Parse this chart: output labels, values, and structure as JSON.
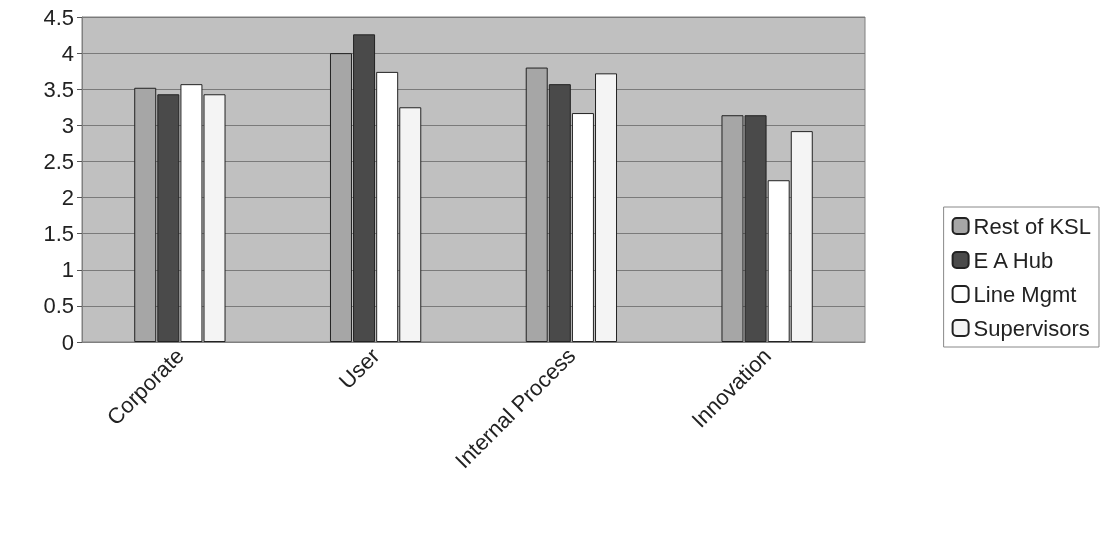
{
  "chart_data": {
    "type": "bar",
    "categories": [
      "Corporate",
      "User",
      "Internal Process",
      "Innovation"
    ],
    "series": [
      {
        "name": "Rest of KSL",
        "color": "#a6a6a6",
        "values": [
          3.52,
          4.0,
          3.8,
          3.14
        ]
      },
      {
        "name": "E A Hub",
        "color": "#4a4a4a",
        "values": [
          3.43,
          4.26,
          3.57,
          3.14
        ]
      },
      {
        "name": "Line Mgmt",
        "color": "#ffffff",
        "values": [
          3.57,
          3.74,
          3.17,
          2.24
        ]
      },
      {
        "name": "Supervisors",
        "color": "#f4f4f4",
        "values": [
          3.43,
          3.25,
          3.72,
          2.92
        ]
      }
    ],
    "ylim": [
      0,
      4.5
    ],
    "yticks": [
      0,
      0.5,
      1,
      1.5,
      2,
      2.5,
      3,
      3.5,
      4,
      4.5
    ],
    "grid": "y",
    "legend": "right"
  }
}
